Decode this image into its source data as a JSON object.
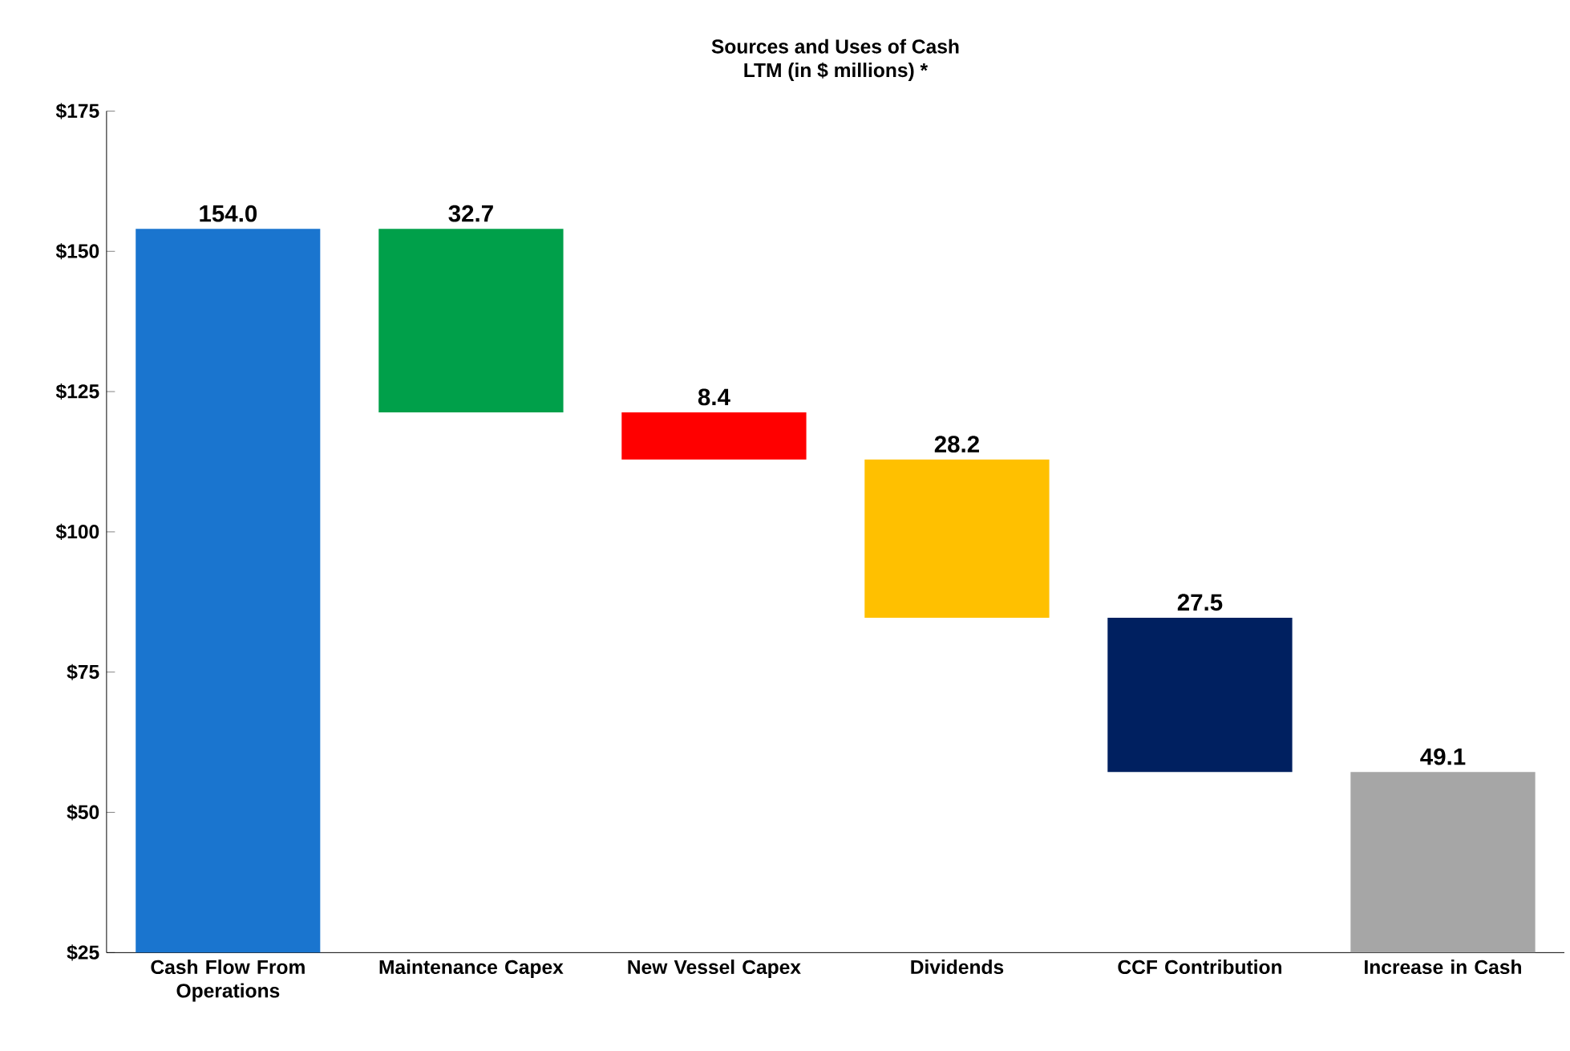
{
  "chart_data": {
    "type": "bar",
    "title": "Sources and Uses of Cash",
    "subtitle": "LTM (in $ millions) *",
    "categories": [
      "Cash Flow From Operations",
      "Maintenance Capex",
      "New Vessel Capex",
      "Dividends",
      "CCF Contribution",
      "Increase in Cash"
    ],
    "values": [
      154.0,
      32.7,
      8.4,
      28.2,
      27.5,
      49.1
    ],
    "base": [
      0,
      121.3,
      112.9,
      84.7,
      57.2,
      8.1
    ],
    "colors": [
      "#1a75cf",
      "#00a04a",
      "#ff0000",
      "#ffc000",
      "#002060",
      "#a6a6a6"
    ],
    "value_labels": [
      "154.0",
      "32.7",
      "8.4",
      "28.2",
      "27.5",
      "49.1"
    ],
    "ylim": [
      25,
      175
    ],
    "yticks": [
      {
        "value": 25,
        "label": "$25"
      },
      {
        "value": 50,
        "label": "$50"
      },
      {
        "value": 75,
        "label": "$75"
      },
      {
        "value": 100,
        "label": "$100"
      },
      {
        "value": 125,
        "label": "$125"
      },
      {
        "value": 150,
        "label": "$150"
      },
      {
        "value": 175,
        "label": "$175"
      }
    ],
    "grid": false
  }
}
